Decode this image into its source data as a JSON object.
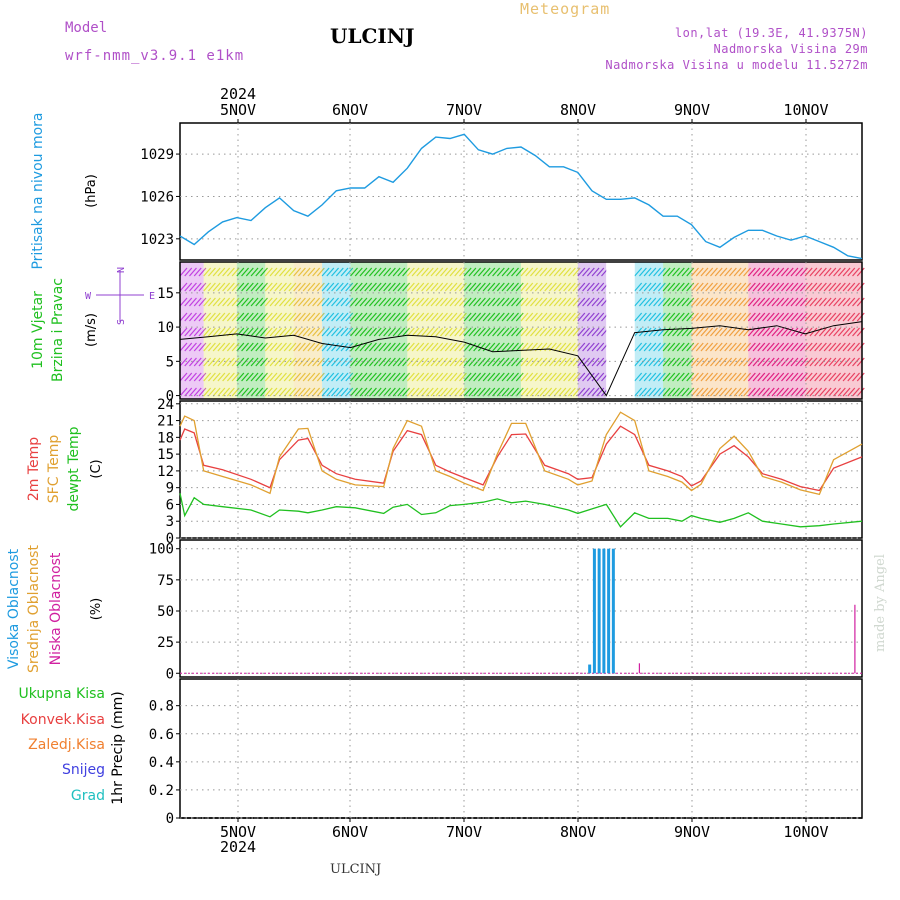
{
  "header": {
    "model_label": "Model",
    "model_name": "wrf-nmm_v3.9.1 e1km",
    "station": "ULCINJ",
    "title": "Meteogram",
    "lonlat": "lon,lat (19.3E, 41.9375N)",
    "altitude": "Nadmorska Visina 29m",
    "model_altitude": "Nadmorska Visina u modelu 11.5272m"
  },
  "credit": "made by Angel",
  "footer": "ULCINJ",
  "time_axis": {
    "year": "2024",
    "days": [
      "5NOV",
      "6NOV",
      "7NOV",
      "8NOV",
      "9NOV",
      "10NOV"
    ]
  },
  "colors": {
    "pressure": "#1e9be0",
    "t2m": "#e84040",
    "sfc": "#e0a030",
    "dewpt": "#20c020",
    "high_cloud": "#1e9be0",
    "low_cloud": "#d020a0",
    "wind_speed": "#000000"
  },
  "panel_labels": {
    "pressure": [
      {
        "text": "Pritisak na nivou mora",
        "color": "#1e9be0"
      },
      {
        "text": "(hPa)",
        "color": "#000000"
      }
    ],
    "wind": [
      {
        "text": "10m Vjetar",
        "color": "#20c020"
      },
      {
        "text": "Brzina i Pravac",
        "color": "#20c020"
      },
      {
        "text": "(m/s)",
        "color": "#000000"
      }
    ],
    "compass": {
      "west": "W",
      "east": "E",
      "north": "N",
      "south": "S",
      "color": "#9040d0"
    },
    "temp": [
      {
        "text": "2m Temp",
        "color": "#e84040"
      },
      {
        "text": "SFC Temp",
        "color": "#e0a030"
      },
      {
        "text": "dewpt Temp",
        "color": "#20c020"
      },
      {
        "text": "(C)",
        "color": "#000000"
      }
    ],
    "cloud": [
      {
        "text": "Visoka Oblacnost",
        "color": "#1e9be0"
      },
      {
        "text": "Srednja Oblacnost",
        "color": "#e0a030"
      },
      {
        "text": "Niska Oblacnost",
        "color": "#d020a0"
      },
      {
        "text": "(%)",
        "color": "#000000"
      }
    ],
    "precip_legend": [
      {
        "text": "Ukupna Kisa",
        "color": "#20c020"
      },
      {
        "text": "Konvek.Kisa",
        "color": "#e84040"
      },
      {
        "text": "Zaledj.Kisa",
        "color": "#f08030"
      },
      {
        "text": "Snijeg",
        "color": "#4040e0"
      },
      {
        "text": "Grad",
        "color": "#20c0c0"
      }
    ],
    "precip_axis": [
      {
        "text": "1hr Precip (mm)",
        "color": "#000000"
      }
    ]
  },
  "chart_data": [
    {
      "type": "line",
      "panel": "pressure",
      "ylabel": "(hPa)",
      "yticks": [
        1023,
        1026,
        1029
      ],
      "ylim": [
        1021.5,
        1031.2
      ],
      "x": [
        0,
        3,
        6,
        9,
        12,
        15,
        18,
        21,
        24,
        27,
        30,
        33,
        36,
        39,
        42,
        45,
        48,
        51,
        54,
        57,
        60,
        63,
        66,
        69,
        72,
        75,
        78,
        81,
        84,
        87,
        90,
        93,
        96,
        99,
        102,
        105,
        108,
        111,
        114,
        117,
        120,
        123,
        126,
        129,
        132,
        135,
        138,
        141,
        144
      ],
      "series": [
        {
          "name": "",
          "values": [
            1023.2,
            1022.6,
            1023.5,
            1024.2,
            1024.5,
            1024.3,
            1025.2,
            1025.9,
            1025.0,
            1024.6,
            1025.4,
            1026.4,
            1026.6,
            1026.6,
            1027.4,
            1027.0,
            1028.0,
            1029.4,
            1030.2,
            1030.1,
            1030.4,
            1029.3,
            1029.0,
            1029.4,
            1029.5,
            1028.9,
            1028.1,
            1028.1,
            1027.7,
            1026.4,
            1025.8,
            1025.8,
            1025.9,
            1025.4,
            1024.6,
            1024.6,
            1024.0,
            1022.8,
            1022.4,
            1023.1,
            1023.6,
            1023.6,
            1023.2,
            1022.9,
            1023.2,
            1022.8,
            1022.4,
            1021.8,
            1021.6
          ]
        }
      ],
      "grid": true
    },
    {
      "type": "line",
      "panel": "wind",
      "ylabel": "(m/s)",
      "yticks": [
        0,
        5,
        10,
        15
      ],
      "ylim": [
        -0.5,
        19.5
      ],
      "x": [
        0,
        6,
        12,
        18,
        24,
        30,
        36,
        42,
        48,
        54,
        60,
        66,
        72,
        78,
        84,
        90,
        96,
        102,
        108,
        114,
        120,
        126,
        132,
        138,
        144
      ],
      "series": [
        {
          "name": "",
          "values": [
            8.2,
            8.6,
            9.0,
            8.4,
            8.8,
            7.6,
            7.0,
            8.2,
            8.8,
            8.6,
            7.8,
            6.4,
            6.6,
            6.8,
            5.8,
            0.0,
            9.2,
            9.6,
            9.8,
            10.2,
            9.6,
            10.2,
            9.0,
            10.2,
            10.8
          ]
        }
      ],
      "grid": true
    },
    {
      "type": "line",
      "panel": "temperature",
      "ylabel": "(C)",
      "yticks": [
        0,
        3,
        6,
        9,
        12,
        15,
        18,
        21,
        24
      ],
      "ylim": [
        0,
        24.5
      ],
      "x": [
        0,
        1,
        3,
        5,
        9,
        15,
        19,
        21,
        25,
        27,
        30,
        33,
        37,
        43,
        45,
        48,
        51,
        54,
        57,
        60,
        64,
        67,
        70,
        73,
        77,
        82,
        84,
        87,
        90,
        93,
        96,
        99,
        103,
        106,
        108,
        110,
        114,
        117,
        120,
        123,
        127,
        131,
        135,
        138,
        144
      ],
      "series": [
        {
          "name": "2m Temp",
          "values": [
            17.5,
            19.5,
            18.8,
            13.0,
            12.2,
            10.5,
            9.0,
            14.0,
            17.5,
            17.8,
            13.0,
            11.5,
            10.5,
            9.8,
            15.5,
            19.2,
            18.5,
            13.0,
            11.8,
            10.8,
            9.5,
            14.5,
            18.5,
            18.6,
            13.0,
            11.5,
            10.5,
            10.8,
            16.8,
            20.0,
            18.5,
            13.0,
            12.0,
            11.0,
            9.3,
            10.2,
            15.0,
            16.5,
            14.5,
            11.5,
            10.5,
            9.2,
            8.5,
            12.5,
            14.5
          ]
        },
        {
          "name": "SFC Temp",
          "values": [
            20.0,
            21.8,
            21.0,
            12.0,
            11.0,
            9.5,
            8.0,
            14.5,
            19.5,
            19.6,
            12.0,
            10.5,
            9.5,
            9.2,
            16.0,
            21.0,
            20.0,
            12.0,
            11.0,
            9.8,
            8.5,
            15.0,
            20.5,
            20.5,
            12.0,
            10.5,
            9.5,
            10.2,
            18.5,
            22.5,
            21.0,
            12.0,
            11.0,
            10.0,
            8.5,
            9.6,
            16.0,
            18.2,
            15.5,
            11.0,
            10.0,
            8.6,
            7.8,
            14.0,
            16.8
          ]
        },
        {
          "name": "dewpt Temp",
          "values": [
            8.0,
            4.0,
            7.2,
            6.0,
            5.6,
            5.0,
            3.8,
            5.0,
            4.8,
            4.5,
            5.0,
            5.6,
            5.4,
            4.4,
            5.5,
            6.0,
            4.2,
            4.5,
            5.8,
            6.0,
            6.4,
            7.0,
            6.3,
            6.6,
            6.0,
            5.0,
            4.4,
            5.2,
            6.0,
            2.0,
            4.5,
            3.5,
            3.5,
            3.0,
            4.0,
            3.5,
            2.8,
            3.5,
            4.5,
            3.0,
            2.5,
            2.0,
            2.2,
            2.5,
            3.0
          ]
        }
      ],
      "grid": true
    },
    {
      "type": "bar",
      "panel": "cloud",
      "ylabel": "(%)",
      "yticks": [
        0,
        25,
        50,
        75,
        100
      ],
      "ylim": [
        -3,
        107
      ],
      "series": [
        {
          "name": "Visoka Oblacnost",
          "x": [
            86.5,
            87.5,
            88.5,
            89.5,
            90.5,
            91.5
          ],
          "values": [
            7,
            100,
            100,
            100,
            100,
            100
          ]
        },
        {
          "name": "Niska Oblacnost",
          "x": [
            97,
            142.5
          ],
          "values": [
            8,
            55
          ]
        }
      ],
      "grid": true
    },
    {
      "type": "line",
      "panel": "precipitation",
      "ylabel": "1hr Precip (mm)",
      "yticks": [
        0,
        0.2,
        0.4,
        0.6,
        0.8
      ],
      "ylim": [
        0,
        0.99
      ],
      "series": [
        {
          "name": "Ukupna Kisa",
          "values": [
            0,
            0,
            0,
            0,
            0,
            0,
            0
          ]
        }
      ],
      "grid": true
    }
  ]
}
